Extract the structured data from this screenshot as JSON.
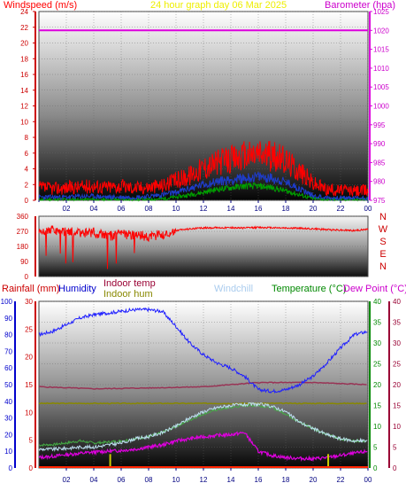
{
  "header": {
    "windspeed_label": "Windspeed (m/s)",
    "graph_title": "24 hour graph day 06 Mar 2025",
    "barometer_label": "Barometer (hpa)"
  },
  "x_ticks": [
    "02",
    "04",
    "06",
    "08",
    "10",
    "12",
    "14",
    "16",
    "18",
    "20",
    "22",
    "00"
  ],
  "compass": [
    "N",
    "W",
    "S",
    "E",
    "N"
  ],
  "bottom_header": {
    "rainfall_label": "Rainfall (mm)",
    "humidity_label": "Humidity",
    "indoor_temp_label": "Indoor temp",
    "indoor_hum_label": "Indoor hum",
    "windchill_label": "Windchill",
    "temperature_label": "Temperature (°C)",
    "dewpoint_label": "Dew Point (°C)"
  },
  "colors": {
    "wind_gust": "#ff0000",
    "wind_avg": "#1e3cc8",
    "wind_low": "#00a000",
    "barometer": "#dd00dd",
    "wind_dir": "#ff0000",
    "humidity": "#2020ff",
    "indoor_hum": "#888800",
    "indoor_temp": "#993355",
    "temperature": "#44aa44",
    "windchill": "#bbddee",
    "dewpoint": "#dd00dd",
    "rainfall": "#cccc00",
    "axis_red": "#cc0000",
    "axis_blue": "#0000cc",
    "axis_green": "#008800",
    "axis_maroon": "#990033",
    "axis_magenta": "#cc00cc"
  },
  "chart_data": [
    {
      "type": "line",
      "title": "24 hour graph day 06 Mar 2025",
      "x_hours": [
        0,
        24
      ],
      "left_axis": {
        "label": "Windspeed (m/s)",
        "range": [
          0,
          24
        ],
        "ticks": [
          0,
          2,
          4,
          6,
          8,
          10,
          12,
          14,
          16,
          18,
          20,
          22,
          24
        ]
      },
      "right_axis": {
        "label": "Barometer (hpa)",
        "range": [
          975,
          1025
        ],
        "ticks": [
          975,
          980,
          985,
          990,
          995,
          1000,
          1005,
          1010,
          1015,
          1020,
          1025
        ]
      },
      "series": [
        {
          "name": "gust",
          "x": [
            0,
            1,
            2,
            3,
            4,
            5,
            6,
            7,
            8,
            9,
            10,
            11,
            12,
            13,
            14,
            15,
            16,
            17,
            18,
            19,
            20,
            21,
            22,
            23,
            24
          ],
          "values": [
            1.6,
            1.5,
            1.6,
            1.7,
            1.8,
            1.7,
            1.8,
            1.6,
            1.7,
            1.9,
            2.5,
            3.2,
            4.2,
            4.8,
            5.2,
            5.6,
            6.0,
            5.6,
            5.1,
            3.8,
            2.2,
            1.4,
            1.3,
            1.2,
            1.3
          ]
        },
        {
          "name": "average",
          "x": [
            0,
            1,
            2,
            3,
            4,
            5,
            6,
            7,
            8,
            9,
            10,
            11,
            12,
            13,
            14,
            15,
            16,
            17,
            18,
            19,
            20,
            21,
            22,
            23,
            24
          ],
          "values": [
            0.4,
            0.4,
            0.4,
            0.5,
            0.5,
            0.4,
            0.4,
            0.4,
            0.5,
            0.7,
            1.0,
            1.5,
            2.0,
            2.4,
            2.6,
            2.8,
            3.0,
            2.8,
            2.3,
            1.5,
            0.6,
            0.3,
            0.3,
            0.3,
            0.3
          ]
        },
        {
          "name": "low",
          "x": [
            0,
            1,
            2,
            3,
            4,
            5,
            6,
            7,
            8,
            9,
            10,
            11,
            12,
            13,
            14,
            15,
            16,
            17,
            18,
            19,
            20,
            21,
            22,
            23,
            24
          ],
          "values": [
            0.1,
            0.1,
            0.1,
            0.1,
            0.1,
            0.1,
            0.1,
            0.1,
            0.1,
            0.2,
            0.4,
            0.7,
            1.0,
            1.4,
            1.6,
            1.8,
            1.8,
            1.6,
            1.2,
            0.7,
            0.2,
            0.1,
            0.1,
            0.1,
            0.1
          ]
        },
        {
          "name": "barometer",
          "x": [
            0,
            24
          ],
          "values": [
            1020,
            1020
          ]
        }
      ]
    },
    {
      "type": "scatter",
      "y_range": [
        0,
        360
      ],
      "y_ticks": [
        0,
        90,
        180,
        270,
        360
      ],
      "series": [
        {
          "name": "direction",
          "x": [
            0,
            1,
            2,
            3,
            4,
            5,
            6,
            7,
            8,
            9,
            10,
            11,
            12,
            13,
            14,
            15,
            16,
            17,
            18,
            19,
            20,
            21,
            22,
            23,
            24
          ],
          "values": [
            260,
            275,
            270,
            255,
            265,
            240,
            250,
            245,
            240,
            250,
            275,
            285,
            290,
            292,
            292,
            290,
            293,
            292,
            290,
            288,
            285,
            280,
            278,
            275,
            282
          ]
        }
      ]
    },
    {
      "type": "line",
      "x_hours": [
        0,
        24
      ],
      "rainfall_axis": {
        "label": "Rainfall (mm)",
        "range": [
          0,
          30
        ],
        "ticks": [
          0,
          5,
          10,
          15,
          20,
          25,
          30
        ]
      },
      "humidity_axis": {
        "label": "Humidity",
        "range": [
          0,
          100
        ],
        "ticks": [
          0,
          10,
          20,
          30,
          40,
          50,
          60,
          70,
          80,
          90,
          100
        ]
      },
      "temperature_axis": {
        "label": "Temperature (°C)",
        "range": [
          0,
          40
        ],
        "ticks": [
          0,
          5,
          10,
          15,
          20,
          25,
          30,
          35,
          40
        ]
      },
      "dewpoint_axis": {
        "label": "Dew Point (°C)",
        "range": [
          0,
          40
        ],
        "ticks": [
          0,
          5,
          10,
          15,
          20,
          25,
          30,
          35,
          40
        ]
      },
      "series": [
        {
          "name": "humidity",
          "x": [
            0,
            1,
            2,
            3,
            4,
            5,
            6,
            7,
            8,
            9,
            10,
            11,
            12,
            13,
            14,
            15,
            16,
            17,
            18,
            19,
            20,
            21,
            22,
            23,
            24
          ],
          "values": [
            80,
            82,
            86,
            90,
            92,
            93,
            94,
            95,
            95,
            94,
            85,
            75,
            68,
            63,
            60,
            55,
            47,
            46,
            47,
            50,
            55,
            63,
            72,
            80,
            82
          ]
        },
        {
          "name": "indoor_temp",
          "x": [
            0,
            4,
            8,
            12,
            16,
            20,
            24
          ],
          "values": [
            19.5,
            19.0,
            19.2,
            19.5,
            20.5,
            20.5,
            20.0
          ]
        },
        {
          "name": "indoor_hum",
          "x": [
            0,
            12,
            24
          ],
          "values": [
            15.5,
            15.5,
            15.5
          ]
        },
        {
          "name": "temperature",
          "x": [
            0,
            1,
            2,
            3,
            4,
            5,
            6,
            7,
            8,
            9,
            10,
            11,
            12,
            13,
            14,
            15,
            16,
            17,
            18,
            19,
            20,
            21,
            22,
            23,
            24
          ],
          "values": [
            5.5,
            5.6,
            6.0,
            6.5,
            6.0,
            6.2,
            6.5,
            7.0,
            7.5,
            8.5,
            10.0,
            11.5,
            13.0,
            14.0,
            14.5,
            15.0,
            15.0,
            14.5,
            13.0,
            11.0,
            9.5,
            8.0,
            7.0,
            6.5,
            6.5
          ]
        },
        {
          "name": "windchill",
          "x": [
            0,
            1,
            2,
            3,
            4,
            5,
            6,
            7,
            8,
            9,
            10,
            11,
            12,
            13,
            14,
            15,
            16,
            17,
            18,
            19,
            20,
            21,
            22,
            23,
            24
          ],
          "values": [
            4.5,
            4.5,
            4.7,
            5.0,
            5.0,
            5.5,
            6.0,
            7.0,
            7.5,
            8.5,
            10.0,
            12.0,
            13.5,
            14.5,
            15.0,
            15.2,
            15.3,
            14.8,
            13.5,
            11.0,
            9.5,
            8.0,
            7.0,
            6.5,
            6.5
          ]
        },
        {
          "name": "dewpoint",
          "x": [
            0,
            1,
            2,
            3,
            4,
            5,
            6,
            7,
            8,
            9,
            10,
            11,
            12,
            13,
            14,
            15,
            16,
            17,
            18,
            19,
            20,
            21,
            22,
            23,
            24
          ],
          "values": [
            2.5,
            2.8,
            3.2,
            3.5,
            3.8,
            4.0,
            4.2,
            4.5,
            5.0,
            5.5,
            6.5,
            7.0,
            7.5,
            7.8,
            8.0,
            8.5,
            4.0,
            3.0,
            2.5,
            2.3,
            2.2,
            2.5,
            3.0,
            3.5,
            4.0
          ]
        },
        {
          "name": "rainfall",
          "x": [
            5.2,
            21.1
          ],
          "values": [
            2.5,
            2.5
          ]
        }
      ]
    }
  ]
}
